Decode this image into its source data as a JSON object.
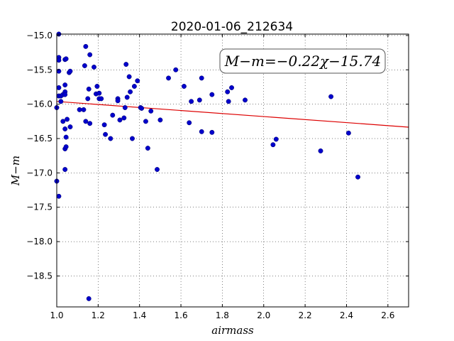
{
  "chart_data": {
    "type": "scatter",
    "title": "2020-01-06_212634",
    "xlabel": "airmass",
    "ylabel": "M−m",
    "xlim": [
      1.0,
      2.7
    ],
    "ylim": [
      -18.95,
      -14.98
    ],
    "y_inverted": true,
    "grid": true,
    "x_ticks": [
      "1.0",
      "1.2",
      "1.4",
      "1.6",
      "1.8",
      "2.0",
      "2.2",
      "2.4",
      "2.6"
    ],
    "y_ticks": [
      "−15.0",
      "−15.5",
      "−16.0",
      "−16.5",
      "−17.0",
      "−17.5",
      "−18.0",
      "−18.5"
    ],
    "annotation": "M−m=−0.22χ−15.74",
    "point_color": "#0000cc",
    "fit_color": "#dd0000",
    "fit_line": {
      "slope": -0.22,
      "intercept": -15.74
    },
    "points": [
      {
        "x": 1.0,
        "y": -16.05
      },
      {
        "x": 1.0,
        "y": -17.12
      },
      {
        "x": 1.01,
        "y": -14.98
      },
      {
        "x": 1.01,
        "y": -15.32
      },
      {
        "x": 1.01,
        "y": -15.36
      },
      {
        "x": 1.01,
        "y": -15.52
      },
      {
        "x": 1.01,
        "y": -15.76
      },
      {
        "x": 1.01,
        "y": -15.88
      },
      {
        "x": 1.01,
        "y": -17.34
      },
      {
        "x": 1.02,
        "y": -15.96
      },
      {
        "x": 1.02,
        "y": -15.88
      },
      {
        "x": 1.03,
        "y": -15.86
      },
      {
        "x": 1.03,
        "y": -16.25
      },
      {
        "x": 1.04,
        "y": -15.35
      },
      {
        "x": 1.04,
        "y": -15.72
      },
      {
        "x": 1.04,
        "y": -15.82
      },
      {
        "x": 1.04,
        "y": -15.86
      },
      {
        "x": 1.04,
        "y": -16.36
      },
      {
        "x": 1.04,
        "y": -16.65
      },
      {
        "x": 1.04,
        "y": -16.95
      },
      {
        "x": 1.045,
        "y": -15.34
      },
      {
        "x": 1.045,
        "y": -16.48
      },
      {
        "x": 1.045,
        "y": -16.62
      },
      {
        "x": 1.05,
        "y": -16.22
      },
      {
        "x": 1.06,
        "y": -15.54
      },
      {
        "x": 1.065,
        "y": -15.52
      },
      {
        "x": 1.065,
        "y": -16.33
      },
      {
        "x": 1.11,
        "y": -16.08
      },
      {
        "x": 1.13,
        "y": -16.08
      },
      {
        "x": 1.135,
        "y": -15.44
      },
      {
        "x": 1.14,
        "y": -15.16
      },
      {
        "x": 1.14,
        "y": -16.25
      },
      {
        "x": 1.15,
        "y": -15.92
      },
      {
        "x": 1.155,
        "y": -15.78
      },
      {
        "x": 1.16,
        "y": -15.28
      },
      {
        "x": 1.16,
        "y": -16.28
      },
      {
        "x": 1.155,
        "y": -18.83
      },
      {
        "x": 1.18,
        "y": -15.46
      },
      {
        "x": 1.19,
        "y": -15.85
      },
      {
        "x": 1.195,
        "y": -15.74
      },
      {
        "x": 1.205,
        "y": -15.84
      },
      {
        "x": 1.205,
        "y": -15.92
      },
      {
        "x": 1.215,
        "y": -15.92
      },
      {
        "x": 1.23,
        "y": -16.3
      },
      {
        "x": 1.235,
        "y": -16.44
      },
      {
        "x": 1.26,
        "y": -16.5
      },
      {
        "x": 1.27,
        "y": -16.16
      },
      {
        "x": 1.295,
        "y": -15.92
      },
      {
        "x": 1.295,
        "y": -15.95
      },
      {
        "x": 1.305,
        "y": -16.23
      },
      {
        "x": 1.325,
        "y": -16.2
      },
      {
        "x": 1.33,
        "y": -16.05
      },
      {
        "x": 1.335,
        "y": -15.42
      },
      {
        "x": 1.34,
        "y": -15.9
      },
      {
        "x": 1.35,
        "y": -15.6
      },
      {
        "x": 1.355,
        "y": -15.82
      },
      {
        "x": 1.365,
        "y": -16.5
      },
      {
        "x": 1.375,
        "y": -15.74
      },
      {
        "x": 1.39,
        "y": -15.66
      },
      {
        "x": 1.405,
        "y": -16.05
      },
      {
        "x": 1.41,
        "y": -16.06
      },
      {
        "x": 1.43,
        "y": -16.25
      },
      {
        "x": 1.44,
        "y": -16.64
      },
      {
        "x": 1.455,
        "y": -16.1
      },
      {
        "x": 1.485,
        "y": -16.95
      },
      {
        "x": 1.5,
        "y": -16.23
      },
      {
        "x": 1.54,
        "y": -15.62
      },
      {
        "x": 1.575,
        "y": -15.5
      },
      {
        "x": 1.615,
        "y": -15.74
      },
      {
        "x": 1.64,
        "y": -16.27
      },
      {
        "x": 1.65,
        "y": -15.96
      },
      {
        "x": 1.69,
        "y": -15.94
      },
      {
        "x": 1.7,
        "y": -15.62
      },
      {
        "x": 1.7,
        "y": -16.4
      },
      {
        "x": 1.75,
        "y": -15.86
      },
      {
        "x": 1.75,
        "y": -16.41
      },
      {
        "x": 1.825,
        "y": -15.82
      },
      {
        "x": 1.83,
        "y": -15.96
      },
      {
        "x": 1.845,
        "y": -15.76
      },
      {
        "x": 1.91,
        "y": -15.94
      },
      {
        "x": 2.045,
        "y": -16.59
      },
      {
        "x": 2.06,
        "y": -16.51
      },
      {
        "x": 2.275,
        "y": -16.68
      },
      {
        "x": 2.325,
        "y": -15.89
      },
      {
        "x": 2.41,
        "y": -16.42
      },
      {
        "x": 2.455,
        "y": -17.06
      }
    ]
  }
}
